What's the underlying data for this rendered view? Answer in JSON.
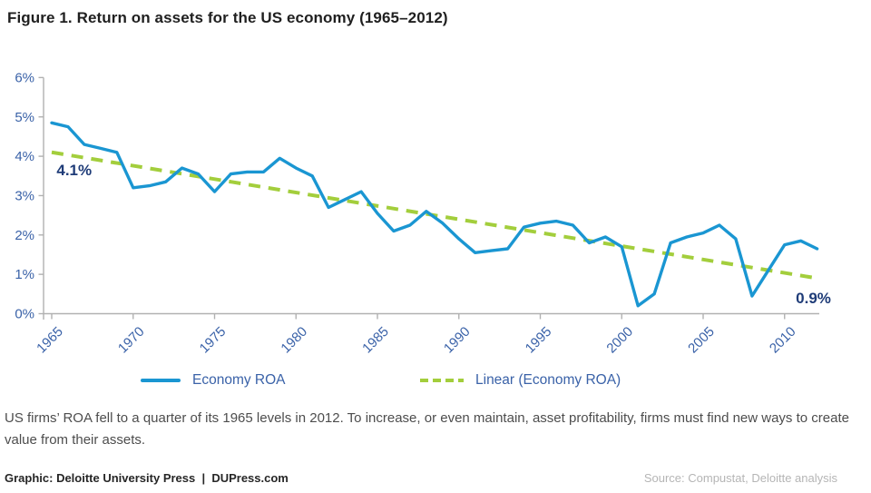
{
  "figure": {
    "title": "Figure 1. Return on assets for the US economy (1965–2012)",
    "caption": "US firms’ ROA fell to a quarter of its 1965 levels in 2012. To increase, or even maintain, asset profitability, firms must find new ways to create value from their assets.",
    "footer_left": "Graphic: Deloitte University Press  |  DUPress.com",
    "footer_right": "Source: Compustat, Deloitte analysis"
  },
  "legend": {
    "items": [
      {
        "label": "Economy ROA",
        "swatch": "solid-line"
      },
      {
        "label": "Linear (Economy ROA)",
        "swatch": "dashed-line"
      }
    ]
  },
  "chart_data": {
    "type": "line",
    "title": "Figure 1. Return on assets for the US economy (1965–2012)",
    "xlabel": "",
    "ylabel": "",
    "ylim": [
      0,
      6
    ],
    "grid": false,
    "legend_position": "bottom",
    "yticks": [
      "0%",
      "1%",
      "2%",
      "3%",
      "4%",
      "5%",
      "6%"
    ],
    "xticks": [
      1965,
      1970,
      1975,
      1980,
      1985,
      1990,
      1995,
      2000,
      2005,
      2010
    ],
    "x": [
      1965,
      1966,
      1967,
      1968,
      1969,
      1970,
      1971,
      1972,
      1973,
      1974,
      1975,
      1976,
      1977,
      1978,
      1979,
      1980,
      1981,
      1982,
      1983,
      1984,
      1985,
      1986,
      1987,
      1988,
      1989,
      1990,
      1991,
      1992,
      1993,
      1994,
      1995,
      1996,
      1997,
      1998,
      1999,
      2000,
      2001,
      2002,
      2003,
      2004,
      2005,
      2006,
      2007,
      2008,
      2009,
      2010,
      2011,
      2012
    ],
    "series": [
      {
        "name": "Economy ROA",
        "style": "solid",
        "color": "#1A96D2",
        "values": [
          4.85,
          4.75,
          4.3,
          4.2,
          4.1,
          3.2,
          3.25,
          3.35,
          3.7,
          3.55,
          3.1,
          3.55,
          3.6,
          3.6,
          3.95,
          3.7,
          3.5,
          2.7,
          2.9,
          3.1,
          2.55,
          2.1,
          2.25,
          2.6,
          2.3,
          1.9,
          1.55,
          1.6,
          1.65,
          2.2,
          2.3,
          2.35,
          2.25,
          1.8,
          1.95,
          1.7,
          0.2,
          0.5,
          1.8,
          1.95,
          2.05,
          2.25,
          1.9,
          0.45,
          1.1,
          1.75,
          1.85,
          1.65
        ]
      },
      {
        "name": "Linear (Economy ROA)",
        "style": "dashed",
        "color": "#A3CE3C",
        "x": [
          1965,
          2012
        ],
        "values": [
          4.1,
          0.9
        ]
      }
    ],
    "annotations": [
      {
        "text": "4.1%",
        "year": 1965.3,
        "value": 3.52,
        "anchor": "start"
      },
      {
        "text": "0.9%",
        "year": 2012.85,
        "value": 0.27,
        "anchor": "end"
      }
    ]
  },
  "colors": {
    "line-blue": "#1A96D2",
    "trend-green": "#A3CE3C",
    "axis-label-blue": "#3A62A8",
    "annotation-navy": "#1F3C78",
    "axis-gray": "#B1B1B1",
    "title-black": "#1F1F1F",
    "caption-gray": "#4D4D4D",
    "footer-gray": "#B5B5B5"
  }
}
